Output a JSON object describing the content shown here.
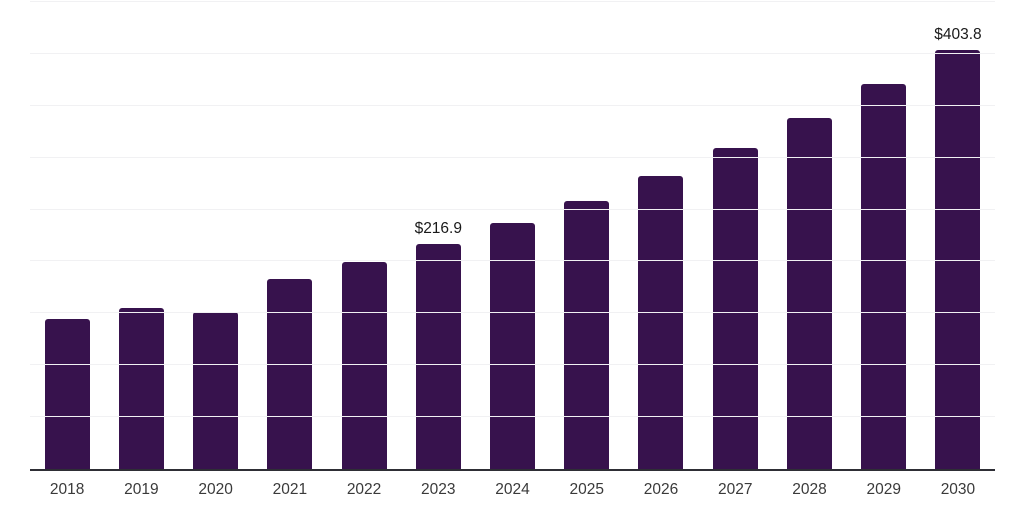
{
  "chart_data": {
    "type": "bar",
    "title": "",
    "xlabel": "",
    "ylabel": "",
    "categories": [
      "2018",
      "2019",
      "2020",
      "2021",
      "2022",
      "2023",
      "2024",
      "2025",
      "2026",
      "2027",
      "2028",
      "2029",
      "2030"
    ],
    "values": [
      144.4,
      155.6,
      151.7,
      182.9,
      199.8,
      216.9,
      236.9,
      258.2,
      282.3,
      309.2,
      338.4,
      370.8,
      403.8
    ],
    "annotations": [
      {
        "category": "2023",
        "text": "$216.9"
      },
      {
        "category": "2030",
        "text": "$403.8"
      }
    ],
    "ylim": [
      0,
      450
    ],
    "grid_interval": 50,
    "grid": "horizontal-only",
    "legend": "none",
    "y_tick_labels": "none",
    "colors": {
      "bar": "#37124D",
      "axis_line": "#2e2e35",
      "gridline": "#f1f1f3",
      "x_label": "#3a3a3a",
      "value_label": "#1a1a1a",
      "background": "#ffffff"
    }
  }
}
